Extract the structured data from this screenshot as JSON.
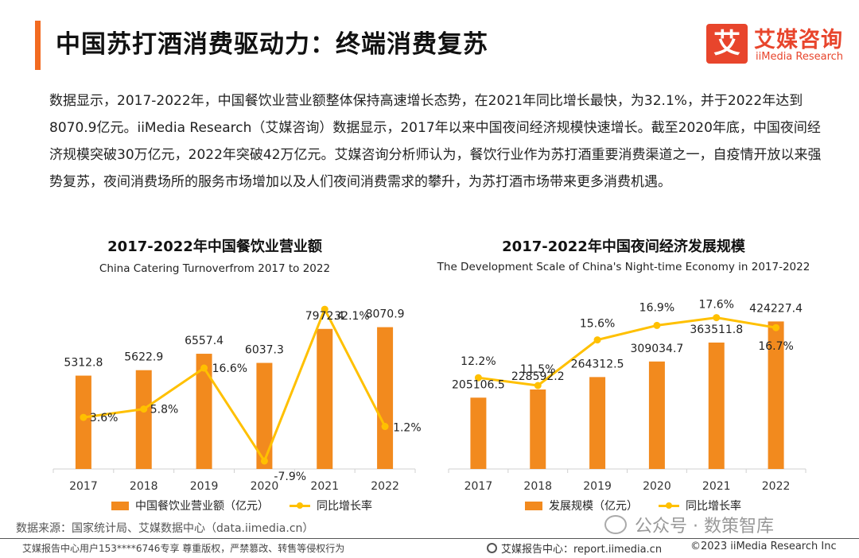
{
  "header": {
    "title": "中国苏打酒消费驱动力：终端消费复苏",
    "logo_mark": "艾",
    "logo_cn": "艾媒咨询",
    "logo_en": "iiMedia Research"
  },
  "intro_text": "数据显示，2017-2022年，中国餐饮业营业额整体保持高速增长态势，在2021年同比增长最快，为32.1%，并于2022年达到8070.9亿元。iiMedia Research（艾媒咨询）数据显示，2017年以来中国夜间经济规模快速增长。截至2020年底，中国夜间经济规模突破30万亿元，2022年突破42万亿元。艾媒咨询分析师认为，餐饮行业作为苏打酒重要消费渠道之一，自疫情开放以来强势复苏，夜间消费场所的服务市场增加以及人们夜间消费需求的攀升，为苏打酒市场带来更多消费机遇。",
  "colors": {
    "bar": "#f28a1e",
    "line": "#ffc000",
    "accent": "#f26b21",
    "brand": "#e8452c"
  },
  "chart_data": [
    {
      "type": "bar",
      "title": "2017-2022年中国餐饮业营业额",
      "subtitle": "China Catering Turnoverfrom 2017 to 2022",
      "categories": [
        "2017",
        "2018",
        "2019",
        "2020",
        "2021",
        "2022"
      ],
      "series": [
        {
          "name": "中国餐饮业营业额（亿元）",
          "kind": "bar",
          "values": [
            5312.8,
            5622.9,
            6557.4,
            6037.3,
            7972.4,
            8070.9
          ],
          "labels": [
            "5312.8",
            "5622.9",
            "6557.4",
            "6037.3",
            "7972.4",
            "8070.9"
          ]
        },
        {
          "name": "同比增长率",
          "kind": "line",
          "values": [
            3.6,
            5.8,
            16.6,
            -7.9,
            32.1,
            1.2
          ],
          "labels": [
            "3.6%",
            "5.8%",
            "16.6%",
            "-7.9%",
            "32.1%",
            "1.2%"
          ]
        }
      ],
      "ylim": [
        0,
        9500
      ],
      "y2lim": [
        -10,
        34
      ]
    },
    {
      "type": "bar",
      "title": "2017-2022年中国夜间经济发展规模",
      "subtitle": "The Development Scale of China's Night-time Economy in 2017-2022",
      "categories": [
        "2017",
        "2018",
        "2019",
        "2020",
        "2021",
        "2022"
      ],
      "series": [
        {
          "name": "发展规模（亿元）",
          "kind": "bar",
          "values": [
            205106.5,
            228592.2,
            264312.5,
            309034.7,
            363511.8,
            424227.4
          ],
          "labels": [
            "205106.5",
            "228592.2",
            "264312.5",
            "309034.7",
            "363511.8",
            "424227.4"
          ]
        },
        {
          "name": "同比增长率",
          "kind": "line",
          "values": [
            12.2,
            11.5,
            15.6,
            16.9,
            17.6,
            16.7
          ],
          "labels": [
            "12.2%",
            "11.5%",
            "15.6%",
            "16.9%",
            "17.6%",
            "16.7%"
          ]
        }
      ],
      "ylim": [
        0,
        480000
      ],
      "y2lim": [
        4,
        19
      ]
    }
  ],
  "footer": {
    "source": "数据来源：国家统计局、艾媒数据中心（data.iimedia.cn）",
    "watermark": "公众号 · 数策智库",
    "copyright_notice": "艾媒报告中心用户153****6746专享 尊重版权，严禁篡改、转售等侵权行为",
    "report_center": "艾媒报告中心：report.iimedia.cn",
    "copyright": "©2023  iiMedia Research  Inc"
  }
}
